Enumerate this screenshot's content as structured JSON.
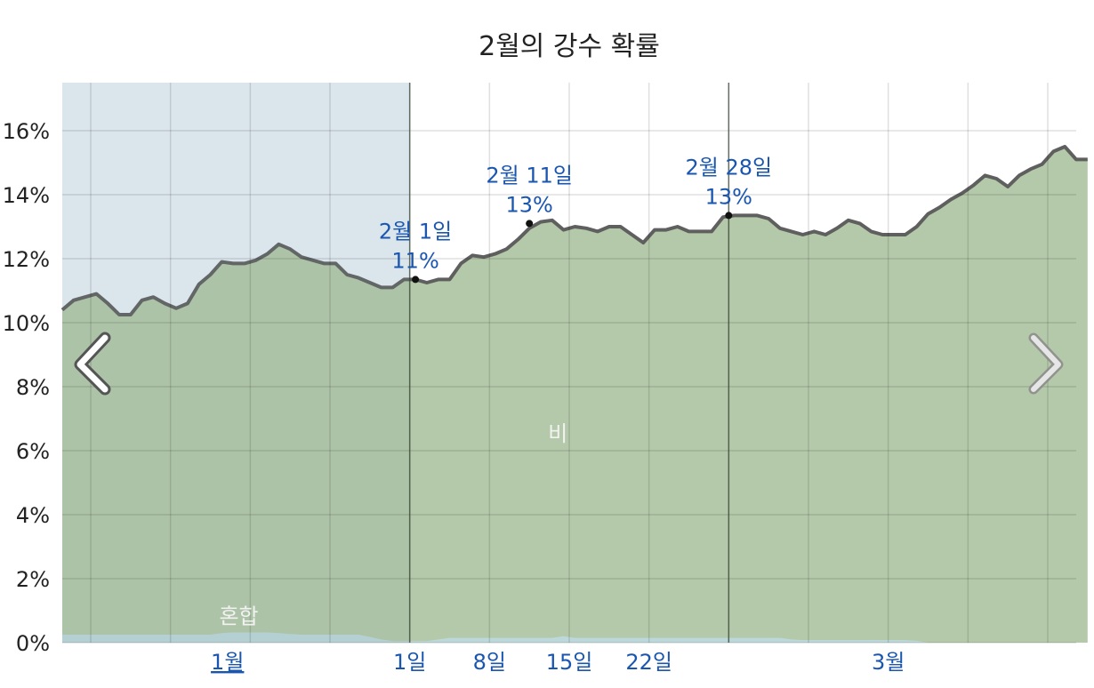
{
  "chart_data": {
    "type": "area",
    "title": "2월의 강수 확률",
    "xlabel": "",
    "ylabel": "",
    "ylim": [
      0,
      17.5
    ],
    "y_ticks": [
      "0%",
      "2%",
      "4%",
      "6%",
      "8%",
      "10%",
      "12%",
      "14%",
      "16%"
    ],
    "y_tick_values": [
      0,
      2,
      4,
      6,
      8,
      10,
      12,
      14,
      16
    ],
    "x_ticks": [
      {
        "label": "1월",
        "day": -16,
        "underline": true
      },
      {
        "label": "1일",
        "day": 0,
        "underline": false
      },
      {
        "label": "8일",
        "day": 7,
        "underline": false
      },
      {
        "label": "15일",
        "day": 14,
        "underline": false
      },
      {
        "label": "22일",
        "day": 21,
        "underline": false
      },
      {
        "label": "3월",
        "day": 42,
        "underline": false
      }
    ],
    "x_range_days": [
      -30.5,
      58.5
    ],
    "grid": true,
    "highlight_region": {
      "from_day": -30.5,
      "to_day": 0,
      "color": "#e8eff7"
    },
    "series": [
      {
        "name": "비",
        "color": "#b4c9a9",
        "day_start": -30.5,
        "step": 1,
        "values": [
          10.4,
          10.7,
          10.8,
          10.9,
          10.6,
          10.25,
          10.25,
          10.7,
          10.8,
          10.6,
          10.45,
          10.6,
          11.2,
          11.5,
          11.9,
          11.85,
          11.85,
          11.95,
          12.15,
          12.45,
          12.3,
          12.05,
          11.95,
          11.85,
          11.85,
          11.5,
          11.4,
          11.25,
          11.1,
          11.1,
          11.35,
          11.35,
          11.25,
          11.35,
          11.35,
          11.85,
          12.1,
          12.05,
          12.15,
          12.3,
          12.6,
          12.95,
          13.15,
          13.2,
          12.9,
          13.0,
          12.95,
          12.85,
          13.0,
          13.0,
          12.75,
          12.5,
          12.9,
          12.9,
          13.0,
          12.85,
          12.85,
          12.85,
          13.3,
          13.35,
          13.35,
          13.35,
          13.25,
          12.95,
          12.85,
          12.75,
          12.85,
          12.75,
          12.95,
          13.2,
          13.1,
          12.85,
          12.75,
          12.75,
          12.75,
          13.0,
          13.4,
          13.6,
          13.85,
          14.05,
          14.3,
          14.6,
          14.5,
          14.25,
          14.6,
          14.8,
          14.95,
          15.35,
          15.5,
          15.1,
          15.1
        ]
      },
      {
        "name": "혼합",
        "color": "#bcd8db",
        "day_start": -30.5,
        "step": 1,
        "values": [
          0.25,
          0.25,
          0.25,
          0.25,
          0.25,
          0.25,
          0.25,
          0.25,
          0.25,
          0.25,
          0.25,
          0.25,
          0.25,
          0.25,
          0.3,
          0.32,
          0.32,
          0.32,
          0.32,
          0.3,
          0.27,
          0.25,
          0.25,
          0.25,
          0.25,
          0.25,
          0.25,
          0.18,
          0.1,
          0.05,
          0.05,
          0.05,
          0.05,
          0.1,
          0.15,
          0.15,
          0.15,
          0.15,
          0.15,
          0.15,
          0.15,
          0.15,
          0.15,
          0.15,
          0.2,
          0.15,
          0.15,
          0.15,
          0.15,
          0.15,
          0.15,
          0.15,
          0.15,
          0.15,
          0.15,
          0.15,
          0.15,
          0.15,
          0.15,
          0.15,
          0.15,
          0.15,
          0.15,
          0.15,
          0.1,
          0.08,
          0.08,
          0.08,
          0.08,
          0.08,
          0.08,
          0.08,
          0.08,
          0.08,
          0.08,
          0.06,
          0.0,
          0.0,
          0.0,
          0.0,
          0.0,
          0.0,
          0.0,
          0.0,
          0.0,
          0.0,
          0.0,
          0.0,
          0.0,
          0.0,
          0.0
        ]
      }
    ],
    "annotations": [
      {
        "date_label": "2월 1일",
        "value_label": "11%",
        "day": 0.5,
        "value": 11.35
      },
      {
        "date_label": "2월 11일",
        "value_label": "13%",
        "day": 10.5,
        "value": 13.1
      },
      {
        "date_label": "2월 28일",
        "value_label": "13%",
        "day": 28,
        "value": 13.35
      }
    ],
    "month_boundaries_days": [
      0,
      28
    ],
    "series_labels": [
      {
        "text": "비",
        "day": 13,
        "value": 6.3
      },
      {
        "text": "혼합",
        "day": -15,
        "value": 0.6
      }
    ],
    "nav": {
      "prev_icon": "chevron-left-icon",
      "next_icon": "chevron-right-icon"
    }
  }
}
